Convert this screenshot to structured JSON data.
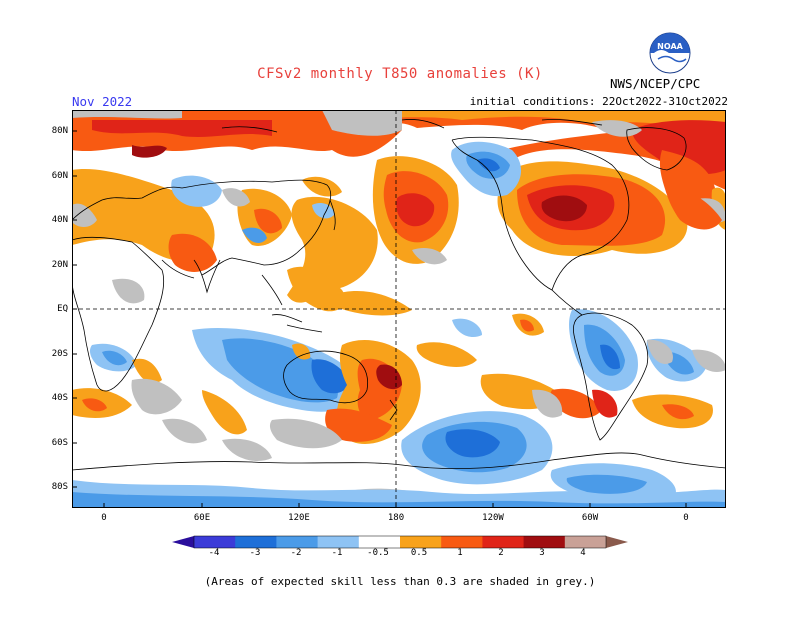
{
  "header": {
    "title": "CFSv2 monthly T850 anomalies (K)",
    "month": "Nov 2022",
    "agency": "NWS/NCEP/CPC",
    "initial_conditions": "initial conditions: 22Oct2022-31Oct2022",
    "logo_text": "NOAA"
  },
  "map": {
    "lat_labels": [
      "80N",
      "60N",
      "40N",
      "20N",
      "EQ",
      "20S",
      "40S",
      "60S",
      "80S"
    ],
    "lon_labels": [
      "0",
      "60E",
      "120E",
      "180",
      "120W",
      "60W",
      "0"
    ]
  },
  "colorbar": {
    "labels": [
      "-4",
      "-3",
      "-2",
      "-1",
      "-0.5",
      "0.5",
      "1",
      "2",
      "3",
      "4"
    ],
    "colors": [
      "#2a0e9c",
      "#3b3bd8",
      "#1e6fd8",
      "#4b9be8",
      "#8ec3f4",
      "#ffffff",
      "#f8a21b",
      "#f85a12",
      "#e02418",
      "#a00d10",
      "#c9a197",
      "#8a5a4c"
    ]
  },
  "footnote": "(Areas of expected skill less than 0.3 are shaded in grey.)"
}
